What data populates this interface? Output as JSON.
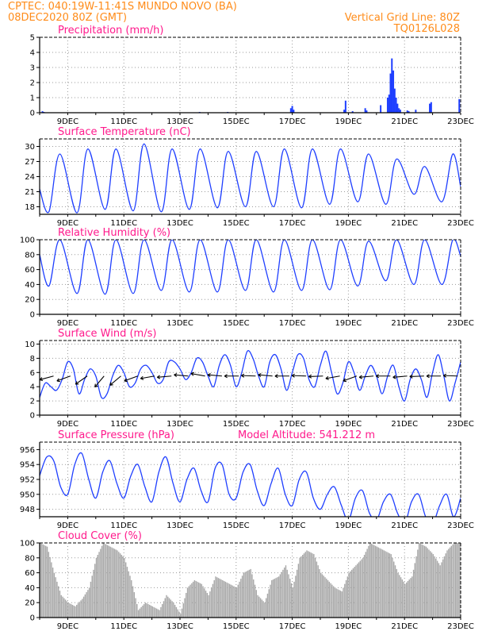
{
  "header": {
    "line1": "CPTEC:  040:19W-11:41S  MUNDO NOVO (BA)",
    "line2": "08DEC2020 80Z (GMT)",
    "grid_note": "Vertical Grid Line: 80Z",
    "code": "TQ0126L028"
  },
  "colors": {
    "header": "#ff8c1a",
    "title": "#ff1a8c",
    "series": "#1f3fff",
    "cloud": "#a8a8a8",
    "grid": "#9a9a9a"
  },
  "chart_data": [
    {
      "type": "bar",
      "title": "Precipitation (mm/h)",
      "ylim": [
        0,
        5
      ],
      "yticks": [
        0,
        1,
        2,
        3,
        4,
        5
      ],
      "x_ticks": [
        "9DEC",
        "11DEC",
        "13DEC",
        "15DEC",
        "17DEC",
        "19DEC",
        "21DEC",
        "23DEC"
      ],
      "x_range_days": [
        8,
        23
      ],
      "grid": true,
      "x": [
        8.1,
        8.15,
        13.7,
        14.7,
        16.95,
        17.0,
        17.05,
        18.85,
        18.9,
        19.15,
        19.6,
        19.65,
        20.15,
        20.4,
        20.45,
        20.5,
        20.55,
        20.6,
        20.65,
        20.7,
        20.75,
        20.8,
        20.85,
        21.1,
        21.15,
        21.4,
        21.9,
        21.95,
        22.95
      ],
      "values": [
        0.1,
        0.05,
        0.05,
        0.05,
        0.3,
        0.45,
        0.2,
        0.2,
        0.8,
        0.1,
        0.3,
        0.15,
        0.5,
        1.0,
        1.2,
        2.6,
        3.6,
        2.8,
        1.6,
        1.0,
        0.6,
        0.3,
        0.2,
        0.15,
        0.1,
        0.2,
        0.6,
        0.7,
        0.9
      ]
    },
    {
      "type": "line",
      "title": "Surface Temperature (nC)",
      "ylim": [
        16.5,
        31.5
      ],
      "yticks": [
        18,
        21,
        24,
        27,
        30
      ],
      "x_ticks": [
        "9DEC",
        "11DEC",
        "13DEC",
        "15DEC",
        "17DEC",
        "19DEC",
        "21DEC",
        "23DEC"
      ],
      "x_range_days": [
        8,
        23
      ],
      "grid": true,
      "mins": [
        17.0,
        16.8,
        17.5,
        17.2,
        17.0,
        17.5,
        17.8,
        18.0,
        18.0,
        17.8,
        18.5,
        19.0,
        18.5,
        20.5,
        19.0
      ],
      "maxs": [
        28.5,
        29.5,
        29.5,
        30.5,
        29.5,
        29.5,
        29.0,
        29.0,
        29.5,
        29.5,
        29.5,
        28.5,
        27.5,
        26.0,
        28.5
      ],
      "start": 21.5,
      "end": 22.0
    },
    {
      "type": "line",
      "title": "Relative Humidity (%)",
      "ylim": [
        0,
        100
      ],
      "yticks": [
        0,
        20,
        40,
        60,
        80,
        100
      ],
      "x_ticks": [
        "9DEC",
        "11DEC",
        "13DEC",
        "15DEC",
        "17DEC",
        "19DEC",
        "21DEC",
        "23DEC"
      ],
      "x_range_days": [
        8,
        23
      ],
      "grid": true,
      "maxs": [
        100,
        100,
        100,
        100,
        100,
        100,
        100,
        100,
        100,
        100,
        100,
        98,
        100,
        100,
        100
      ],
      "mins": [
        38,
        28,
        27,
        28,
        32,
        30,
        30,
        32,
        30,
        32,
        33,
        38,
        45,
        40,
        40
      ],
      "start": 80,
      "end": 78
    },
    {
      "type": "line",
      "title": "Surface Wind (m/s)",
      "ylim": [
        0,
        10.5
      ],
      "yticks": [
        0,
        2,
        4,
        6,
        8,
        10
      ],
      "x_ticks": [
        "9DEC",
        "11DEC",
        "13DEC",
        "15DEC",
        "17DEC",
        "19DEC",
        "21DEC",
        "23DEC"
      ],
      "x_range_days": [
        8,
        23
      ],
      "grid": true,
      "x": [
        8.0,
        8.2,
        8.4,
        8.6,
        8.8,
        9.0,
        9.2,
        9.4,
        9.6,
        9.8,
        10.0,
        10.2,
        10.4,
        10.6,
        10.8,
        11.0,
        11.2,
        11.4,
        11.6,
        11.8,
        12.0,
        12.2,
        12.4,
        12.6,
        12.8,
        13.0,
        13.2,
        13.4,
        13.6,
        13.8,
        14.0,
        14.2,
        14.4,
        14.6,
        14.8,
        15.0,
        15.2,
        15.4,
        15.6,
        15.8,
        16.0,
        16.2,
        16.4,
        16.6,
        16.8,
        17.0,
        17.2,
        17.4,
        17.6,
        17.8,
        18.0,
        18.2,
        18.4,
        18.6,
        18.8,
        19.0,
        19.2,
        19.4,
        19.6,
        19.8,
        20.0,
        20.2,
        20.4,
        20.6,
        20.8,
        21.0,
        21.2,
        21.4,
        21.6,
        21.8,
        22.0,
        22.2,
        22.4,
        22.6,
        22.8,
        23.0
      ],
      "values": [
        2.5,
        4.5,
        4.0,
        3.5,
        5.0,
        7.5,
        6.5,
        3.0,
        5.0,
        6.5,
        5.5,
        2.5,
        3.0,
        5.5,
        7.0,
        6.0,
        4.0,
        4.5,
        6.5,
        7.0,
        6.0,
        4.5,
        5.0,
        7.5,
        7.5,
        6.5,
        5.0,
        6.0,
        8.0,
        7.5,
        5.5,
        4.0,
        7.0,
        8.5,
        7.0,
        4.0,
        6.0,
        9.0,
        8.0,
        5.5,
        4.0,
        7.5,
        8.5,
        6.5,
        3.5,
        6.0,
        8.5,
        8.0,
        5.0,
        4.0,
        7.0,
        9.0,
        6.0,
        3.0,
        4.5,
        7.5,
        6.0,
        3.5,
        5.5,
        7.0,
        5.5,
        3.0,
        5.5,
        7.0,
        4.0,
        2.0,
        5.0,
        6.5,
        5.0,
        2.5,
        6.0,
        8.5,
        5.5,
        2.0,
        4.5,
        7.5
      ],
      "arrows_x": [
        8.1,
        8.7,
        9.3,
        9.9,
        10.5,
        11.1,
        11.7,
        12.3,
        12.9,
        13.5,
        14.1,
        14.7,
        15.3,
        15.9,
        16.5,
        17.1,
        17.7,
        18.3,
        18.9,
        19.5,
        20.1,
        20.7,
        21.3,
        21.9,
        22.5
      ],
      "arrows_angle_deg": [
        195,
        200,
        215,
        230,
        220,
        200,
        190,
        185,
        175,
        170,
        175,
        180,
        178,
        175,
        180,
        178,
        182,
        190,
        200,
        185,
        180,
        185,
        182,
        180,
        178
      ],
      "arrow_base": 5.5
    },
    {
      "type": "line",
      "title": "Surface Pressure (hPa)",
      "annotation": "Model Altitude: 541.212 m",
      "ylim": [
        947.0,
        957.0
      ],
      "yticks": [
        948,
        950,
        952,
        954,
        956
      ],
      "x_ticks": [
        "9DEC",
        "11DEC",
        "13DEC",
        "15DEC",
        "17DEC",
        "19DEC",
        "21DEC",
        "23DEC"
      ],
      "x_range_days": [
        8,
        23
      ],
      "grid": true,
      "x": [
        8.0,
        8.25,
        8.5,
        8.75,
        9.0,
        9.25,
        9.5,
        9.75,
        10.0,
        10.25,
        10.5,
        10.75,
        11.0,
        11.25,
        11.5,
        11.75,
        12.0,
        12.25,
        12.5,
        12.75,
        13.0,
        13.25,
        13.5,
        13.75,
        14.0,
        14.25,
        14.5,
        14.75,
        15.0,
        15.25,
        15.5,
        15.75,
        16.0,
        16.25,
        16.5,
        16.75,
        17.0,
        17.25,
        17.5,
        17.75,
        18.0,
        18.25,
        18.5,
        18.75,
        19.0,
        19.25,
        19.5,
        19.75,
        20.0,
        20.25,
        20.5,
        20.75,
        21.0,
        21.25,
        21.5,
        21.75,
        22.0,
        22.25,
        22.5,
        22.75,
        23.0
      ],
      "values": [
        952.5,
        955.0,
        954.5,
        951.0,
        950.0,
        954.0,
        955.5,
        952.0,
        949.5,
        953.0,
        954.5,
        951.5,
        949.5,
        952.5,
        954.0,
        951.0,
        949.0,
        953.0,
        955.0,
        951.5,
        949.0,
        952.0,
        953.5,
        950.5,
        949.0,
        953.5,
        954.0,
        950.0,
        949.5,
        953.0,
        954.0,
        950.5,
        948.5,
        951.5,
        953.5,
        950.0,
        948.5,
        952.0,
        953.0,
        949.5,
        948.0,
        950.0,
        951.0,
        948.5,
        946.5,
        949.5,
        950.5,
        947.5,
        946.5,
        949.0,
        950.0,
        947.5,
        946.0,
        949.0,
        950.0,
        947.0,
        946.0,
        948.5,
        950.0,
        947.0,
        949.5
      ]
    },
    {
      "type": "bar",
      "title": "Cloud Cover (%)",
      "ylim": [
        0,
        100
      ],
      "yticks": [
        0,
        20,
        40,
        60,
        80,
        100
      ],
      "x_ticks": [
        "9DEC",
        "11DEC",
        "13DEC",
        "15DEC",
        "17DEC",
        "19DEC",
        "21DEC",
        "23DEC"
      ],
      "x_range_days": [
        8,
        23
      ],
      "grid": true,
      "x": [
        8.0,
        8.25,
        8.5,
        8.75,
        9.0,
        9.25,
        9.5,
        9.75,
        10.0,
        10.25,
        10.5,
        10.75,
        11.0,
        11.25,
        11.5,
        11.75,
        12.0,
        12.25,
        12.5,
        12.75,
        13.0,
        13.25,
        13.5,
        13.75,
        14.0,
        14.25,
        14.5,
        14.75,
        15.0,
        15.25,
        15.5,
        15.75,
        16.0,
        16.25,
        16.5,
        16.75,
        17.0,
        17.25,
        17.5,
        17.75,
        18.0,
        18.25,
        18.5,
        18.75,
        19.0,
        19.25,
        19.5,
        19.75,
        20.0,
        20.25,
        20.5,
        20.75,
        21.0,
        21.25,
        21.5,
        21.75,
        22.0,
        22.25,
        22.5,
        22.75,
        23.0
      ],
      "values": [
        100,
        95,
        60,
        30,
        20,
        15,
        25,
        40,
        80,
        100,
        95,
        90,
        80,
        50,
        10,
        20,
        15,
        10,
        30,
        20,
        5,
        40,
        50,
        45,
        30,
        55,
        50,
        45,
        40,
        60,
        65,
        30,
        20,
        50,
        55,
        70,
        40,
        80,
        90,
        85,
        60,
        50,
        40,
        35,
        60,
        70,
        80,
        100,
        95,
        90,
        85,
        60,
        45,
        55,
        100,
        95,
        85,
        70,
        90,
        100,
        100
      ]
    }
  ]
}
